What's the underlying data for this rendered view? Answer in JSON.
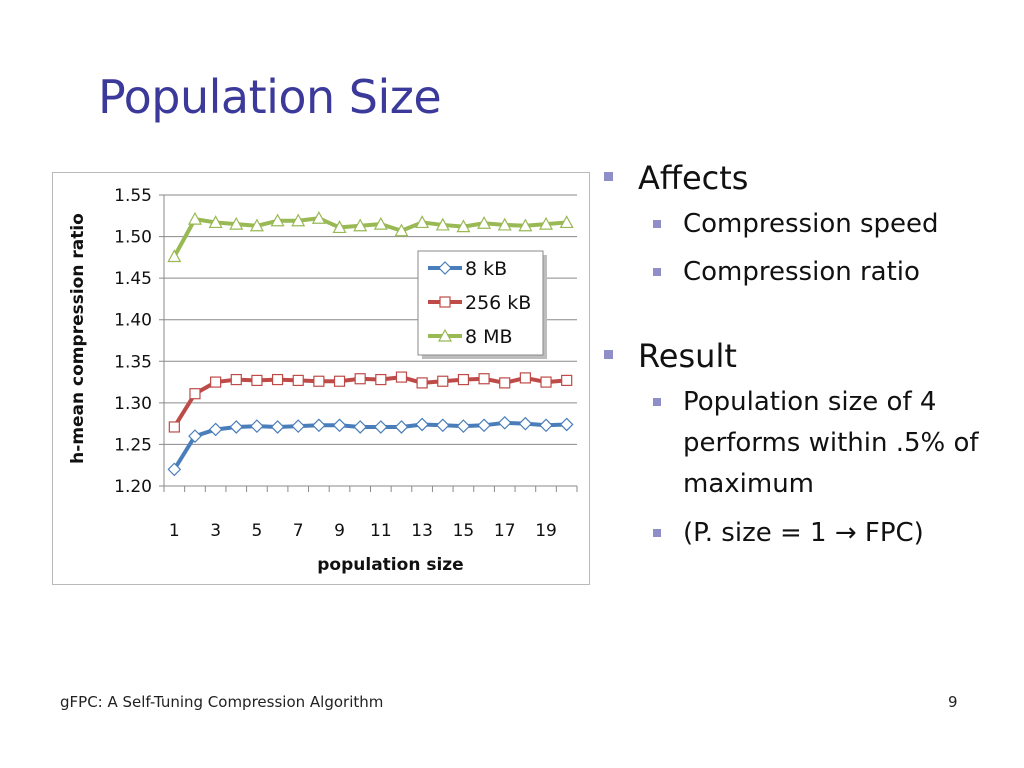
{
  "slide": {
    "title": "Population Size",
    "footer_left": "gFPC: A Self-Tuning Compression Algorithm",
    "page_number": "9"
  },
  "bullets": {
    "affects": {
      "heading": "Affects",
      "items": [
        "Compression speed",
        "Compression ratio"
      ]
    },
    "result": {
      "heading": "Result",
      "items": [
        "Population size of 4 performs within .5% of maximum",
        "(P. size = 1 → FPC)"
      ]
    }
  },
  "colors": {
    "title": "#3b3a9a",
    "bullet": "#8e8ec9",
    "series_8kB": "#4a7ebb",
    "series_256kB": "#be4b48",
    "series_8MB": "#98b954"
  },
  "chart_data": {
    "type": "line",
    "title": "",
    "xlabel": "population size",
    "ylabel": "h-mean compression ratio",
    "x": [
      1,
      2,
      3,
      4,
      5,
      6,
      7,
      8,
      9,
      10,
      11,
      12,
      13,
      14,
      15,
      16,
      17,
      18,
      19,
      20
    ],
    "x_tick_labels": [
      "1",
      "3",
      "5",
      "7",
      "9",
      "11",
      "13",
      "15",
      "17",
      "19"
    ],
    "y_tick_labels": [
      "1.20",
      "1.25",
      "1.30",
      "1.35",
      "1.40",
      "1.45",
      "1.50",
      "1.55"
    ],
    "ylim": [
      1.2,
      1.55
    ],
    "grid": true,
    "legend_position": "top-right",
    "series": [
      {
        "name": "8 kB",
        "marker": "diamond",
        "color": "#4a7ebb",
        "values": [
          1.22,
          1.26,
          1.268,
          1.271,
          1.272,
          1.271,
          1.272,
          1.273,
          1.273,
          1.271,
          1.271,
          1.271,
          1.274,
          1.273,
          1.272,
          1.273,
          1.276,
          1.275,
          1.273,
          1.274
        ]
      },
      {
        "name": "256 kB",
        "marker": "square",
        "color": "#be4b48",
        "values": [
          1.271,
          1.311,
          1.325,
          1.328,
          1.327,
          1.328,
          1.327,
          1.326,
          1.326,
          1.329,
          1.328,
          1.331,
          1.324,
          1.326,
          1.328,
          1.329,
          1.324,
          1.33,
          1.325,
          1.327
        ]
      },
      {
        "name": "8 MB",
        "marker": "triangle",
        "color": "#98b954",
        "values": [
          1.476,
          1.521,
          1.517,
          1.515,
          1.513,
          1.519,
          1.519,
          1.522,
          1.511,
          1.513,
          1.515,
          1.507,
          1.517,
          1.514,
          1.512,
          1.516,
          1.514,
          1.513,
          1.515,
          1.517
        ]
      }
    ]
  }
}
